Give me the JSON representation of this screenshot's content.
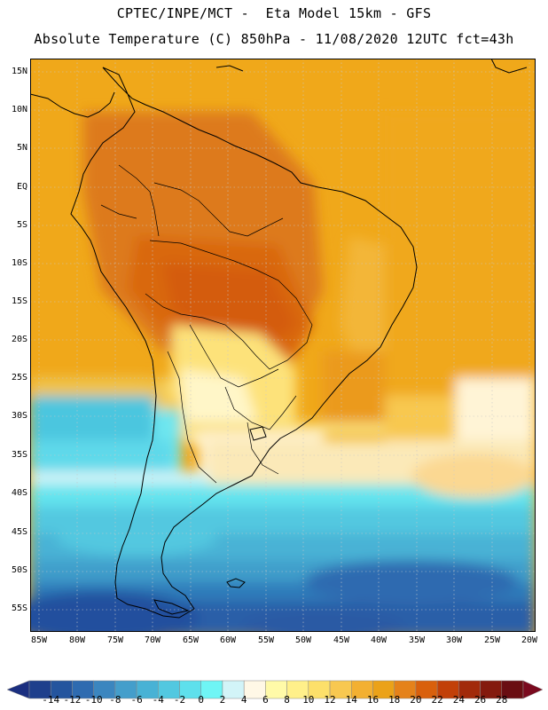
{
  "header": {
    "line1": "CPTEC/INPE/MCT -  Eta Model 15km - GFS",
    "line2": "Absolute Temperature (C) 850hPa - 11/08/2020 12UTC fct=43h"
  },
  "map": {
    "lat_labels": [
      "15N",
      "10N",
      "5N",
      "EQ",
      "5S",
      "10S",
      "15S",
      "20S",
      "25S",
      "30S",
      "35S",
      "40S",
      "45S",
      "50S",
      "55S"
    ],
    "lon_labels": [
      "85W",
      "80W",
      "75W",
      "70W",
      "65W",
      "60W",
      "55W",
      "50W",
      "45W",
      "40W",
      "35W",
      "30W",
      "25W",
      "20W"
    ],
    "grid": "dotted",
    "coastline_color": "#000000"
  },
  "colorbar": {
    "labels": [
      "-14",
      "-12",
      "-10",
      "-8",
      "-6",
      "-4",
      "-2",
      "0",
      "2",
      "4",
      "6",
      "8",
      "10",
      "12",
      "14",
      "16",
      "18",
      "20",
      "22",
      "24",
      "26",
      "28"
    ],
    "colors": [
      "#1e3f8c",
      "#24559e",
      "#2e6bb0",
      "#3b86bf",
      "#449ecb",
      "#48b2d5",
      "#52c8e0",
      "#5ee0ec",
      "#6ff5f5",
      "#d2f4f8",
      "#fff8e6",
      "#fffaa8",
      "#fff08a",
      "#fde06a",
      "#f8c850",
      "#f3b032",
      "#eba218",
      "#e5821a",
      "#d9600c",
      "#c24008",
      "#a22a0a",
      "#841a0e",
      "#6a0e12"
    ],
    "low_end_color": "#1b2f80",
    "high_end_color": "#7a0a1e"
  }
}
